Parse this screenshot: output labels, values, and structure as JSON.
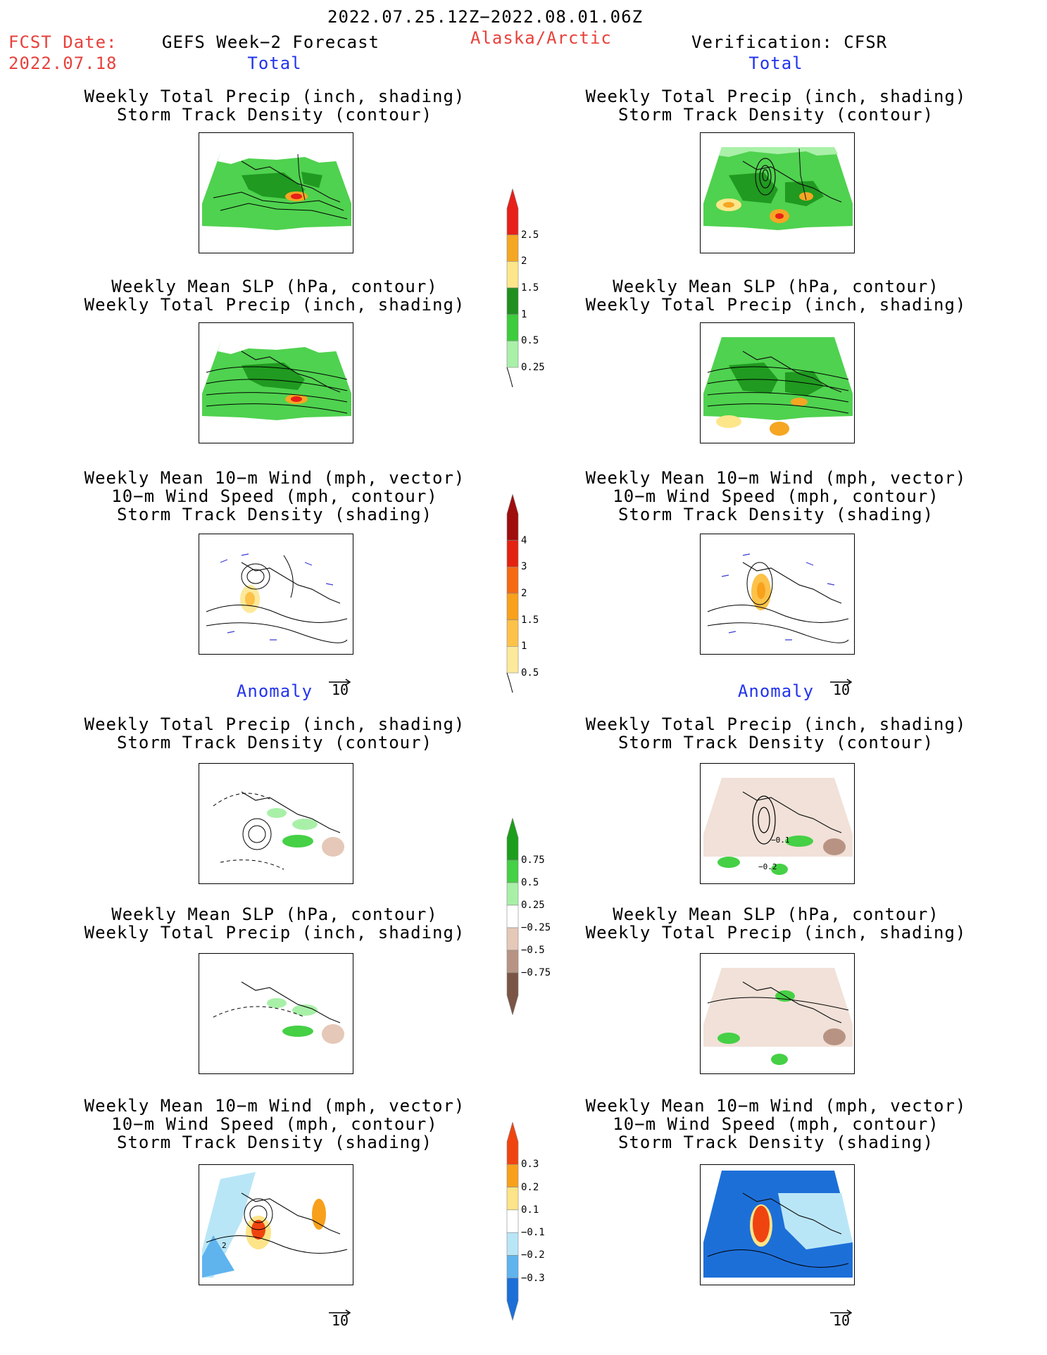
{
  "header": {
    "date_range": "2022.07.25.12Z−2022.08.01.06Z",
    "fcst_label": "FCST Date:",
    "fcst_date": "2022.07.18",
    "model_title": "GEFS Week−2 Forecast",
    "region": "Alaska/Arctic",
    "verification": "Verification: CFSR"
  },
  "sections": {
    "total": "Total",
    "anomaly": "Anomaly"
  },
  "panel_titles": {
    "precip_track": [
      "Weekly Total Precip (inch, shading)",
      "Storm Track Density (contour)"
    ],
    "slp_precip": [
      "Weekly Mean SLP (hPa, contour)",
      "Weekly Total Precip (inch, shading)"
    ],
    "wind_track": [
      "Weekly Mean 10−m Wind (mph, vector)",
      "10−m Wind Speed (mph, contour)",
      "Storm Track Density (shading)"
    ]
  },
  "vector_ref": "10",
  "colors": {
    "title_red": "#e8413c",
    "section_blue": "#2233ee",
    "precip_green": "#4fd24f",
    "precip_dark_green": "#209a20",
    "dry_brown": "#c9a58f",
    "neg_blue": "#1a5fd6"
  },
  "colorbars": {
    "total_precip": {
      "labels": [
        "2.5",
        "2",
        "1.5",
        "1",
        "0.5",
        "0.25"
      ],
      "colors": [
        "#e8201a",
        "#f5a623",
        "#fde68a",
        "#1f8f1f",
        "#3ccc3c",
        "#a9f0a9"
      ]
    },
    "track_density": {
      "labels": [
        "4",
        "3",
        "2",
        "1.5",
        "1",
        "0.5"
      ],
      "colors": [
        "#a00d0d",
        "#e32210",
        "#f56a12",
        "#f9a11b",
        "#fcc24a",
        "#fde99a"
      ]
    },
    "precip_anom": {
      "labels": [
        "0.75",
        "0.5",
        "0.25",
        "−0.25",
        "−0.5",
        "−0.75"
      ],
      "colors": [
        "#1c9e1c",
        "#45d045",
        "#a8f0a8",
        "#ffffff",
        "#e5c8b8",
        "#b89383",
        "#7a5546"
      ]
    },
    "track_anom": {
      "labels": [
        "0.3",
        "0.2",
        "0.1",
        "−0.1",
        "−0.2",
        "−0.3"
      ],
      "colors": [
        "#f04410",
        "#f8a01c",
        "#fde488",
        "#ffffff",
        "#b9e6f7",
        "#5fb4ee",
        "#1d6fd8"
      ]
    }
  },
  "map_labels": {
    "precip_anom_obs": [
      "−0.1",
      "−0.2"
    ],
    "wind_anom_fcst": "2"
  }
}
